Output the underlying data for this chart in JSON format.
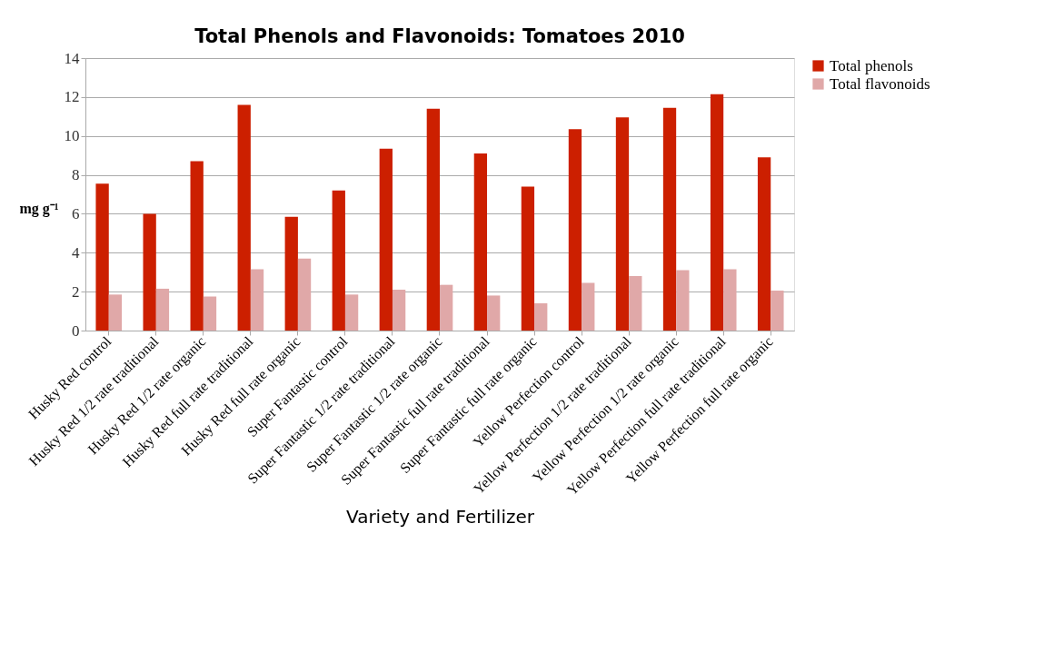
{
  "chart_data": {
    "type": "bar",
    "title": "Total Phenols and Flavonoids: Tomatoes 2010",
    "xlabel": "Variety and Fertilizer",
    "ylabel": "mg g⁻¹",
    "categories": [
      "Husky Red control",
      "Husky Red 1/2 rate traditional",
      "Husky Red 1/2 rate organic",
      "Husky Red full rate traditional",
      "Husky Red full rate organic",
      "Super Fantastic control",
      "Super Fantastic 1/2 rate traditional",
      "Super Fantastic 1/2 rate organic",
      "Super Fantastic full rate traditional",
      "Super Fantastic full rate organic",
      "Yellow Perfection control",
      "Yellow Perfection 1/2 rate traditional",
      "Yellow Perfection 1/2 rate organic",
      "Yellow Perfection full rate traditional",
      "Yellow Perfection full rate organic"
    ],
    "series": [
      {
        "name": "Total phenols",
        "color": "#cc1f00",
        "values": [
          7.55,
          6.0,
          8.7,
          11.6,
          5.85,
          7.2,
          9.35,
          11.4,
          9.1,
          7.4,
          10.35,
          10.95,
          11.45,
          12.15,
          8.9
        ]
      },
      {
        "name": "Total flavonoids",
        "color": "#e0a8a8",
        "values": [
          1.85,
          2.15,
          1.75,
          3.15,
          3.7,
          1.85,
          2.1,
          2.35,
          1.8,
          1.4,
          2.45,
          2.8,
          3.1,
          3.15,
          2.05
        ]
      }
    ],
    "ylim": [
      0,
      14
    ],
    "yticks": [
      0,
      2,
      4,
      6,
      8,
      10,
      12,
      14
    ],
    "grid": "y",
    "legend": "right"
  }
}
